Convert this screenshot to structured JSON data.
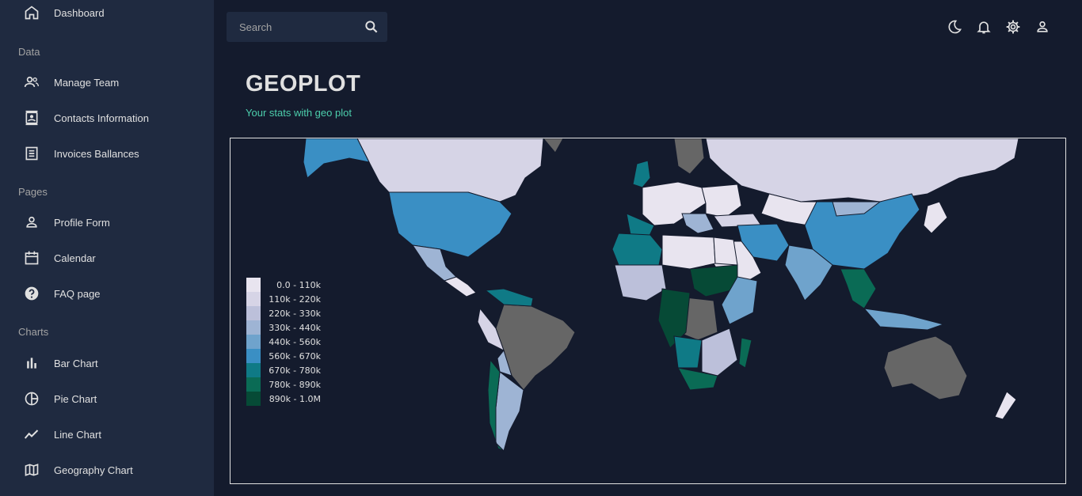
{
  "sidebar": {
    "dashboard": "Dashboard",
    "sections": {
      "data": "Data",
      "pages": "Pages",
      "charts": "Charts"
    },
    "items": {
      "team": "Manage Team",
      "contacts": "Contacts Information",
      "invoices": "Invoices Ballances",
      "profile": "Profile Form",
      "calendar": "Calendar",
      "faq": "FAQ page",
      "bar": "Bar Chart",
      "pie": "Pie Chart",
      "line": "Line Chart",
      "geo": "Geography Chart"
    }
  },
  "topbar": {
    "search_placeholder": "Search",
    "icons": [
      "moon-icon",
      "bell-icon",
      "gear-icon",
      "person-icon"
    ]
  },
  "header": {
    "title": "GEOPLOT",
    "subtitle": "Your stats with geo plot"
  },
  "legend": {
    "items": [
      {
        "label": "0.0 - 110k",
        "color": "#e8e4ef"
      },
      {
        "label": "110k - 220k",
        "color": "#d6d4e6"
      },
      {
        "label": "220k - 330k",
        "color": "#bcc0da"
      },
      {
        "label": "330k - 440k",
        "color": "#9eb4d4"
      },
      {
        "label": "440k - 560k",
        "color": "#6fa3cc"
      },
      {
        "label": "560k - 670k",
        "color": "#3a8fc4"
      },
      {
        "label": "670k - 780k",
        "color": "#0f7a86"
      },
      {
        "label": "780k - 890k",
        "color": "#0a6b55"
      },
      {
        "label": "890k - 1.0M",
        "color": "#064a36"
      }
    ]
  },
  "colors": {
    "background": "#141b2d",
    "sidebar": "#1f2a40",
    "accent": "#4cceac",
    "no_data": "#666666"
  }
}
